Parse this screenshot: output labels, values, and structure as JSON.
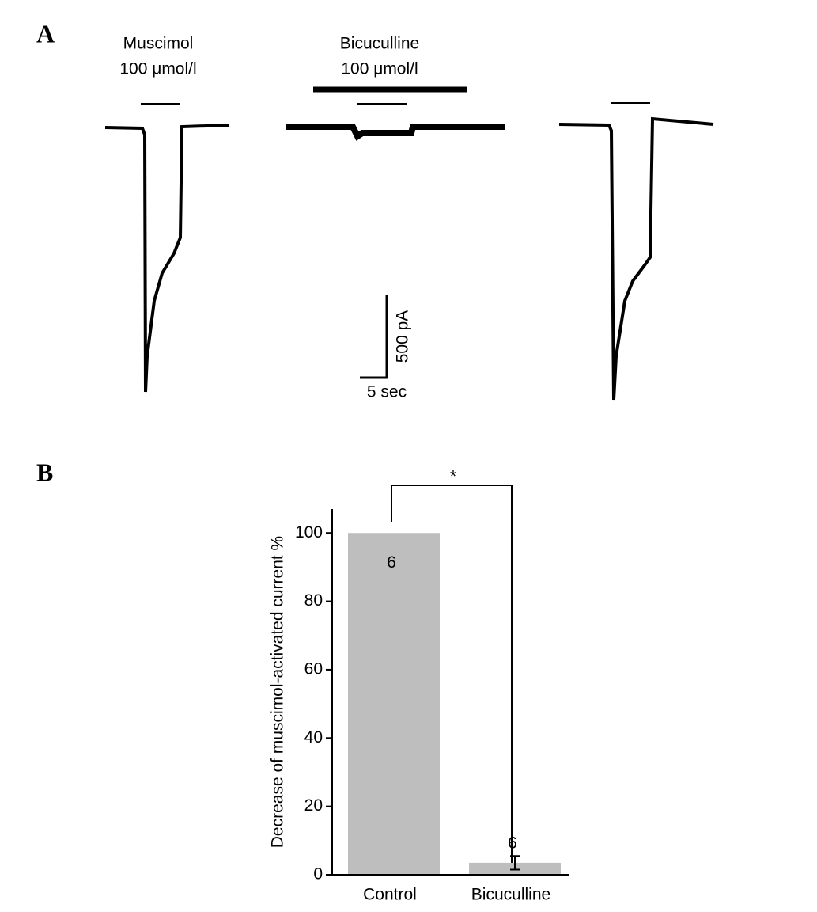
{
  "panel_labels": [
    "A",
    "B"
  ],
  "panel_a": {
    "traces": [
      {
        "drug": "Muscimol",
        "dose": "100 μmol/l"
      },
      {
        "drug": "Bicuculline",
        "dose": "100 μmol/l"
      }
    ],
    "scale_current": "500 pA",
    "scale_time": "5 sec"
  },
  "chart_data": {
    "type": "bar",
    "ylabel": "Decrease of muscimol-activated current %",
    "categories": [
      "Control",
      "Bicuculline"
    ],
    "values": [
      100,
      3.5
    ],
    "errors": [
      null,
      2
    ],
    "n": [
      6,
      6
    ],
    "annotation": "*",
    "color": "#bebebe",
    "ylim": [
      0,
      107
    ],
    "yticks": [
      0,
      20,
      40,
      60,
      80,
      100
    ]
  }
}
